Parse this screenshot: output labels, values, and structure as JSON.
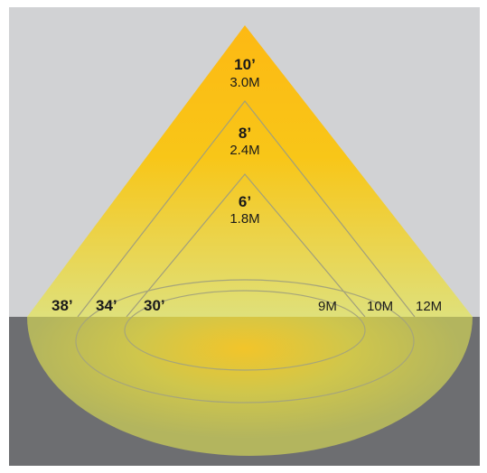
{
  "heights": [
    {
      "feet": "10’",
      "meters": "3.0M"
    },
    {
      "feet": "8’",
      "meters": "2.4M"
    },
    {
      "feet": "6’",
      "meters": "1.8M"
    }
  ],
  "spreads_feet": [
    "38’",
    "34’",
    "30’"
  ],
  "spreads_meters": [
    "9M",
    "10M",
    "12M"
  ],
  "colors": {
    "wall": "#d1d2d4",
    "floor": "#6d6e71",
    "light_core": "#fdbb13",
    "light_edge": "#dfe072",
    "outline": "#9a9a78"
  }
}
